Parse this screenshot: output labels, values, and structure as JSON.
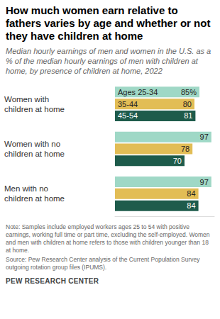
{
  "chart_data": {
    "type": "bar",
    "orientation": "horizontal",
    "title": "How much women earn relative to fathers varies by age and whether or not they have children at home",
    "subtitle": "Median hourly earnings of men and women in the U.S. as a % of the median hourly earnings of men with children at home, by presence of children at home, 2022",
    "categories": [
      "Women with children at home",
      "Women with no children at home",
      "Men with no children at home"
    ],
    "series": [
      {
        "name": "Ages 25-34",
        "color": "#9fd8c6",
        "values": [
          85,
          97,
          97
        ],
        "value_labels": [
          "85%",
          "97",
          "97"
        ]
      },
      {
        "name": "35-44",
        "color": "#e2bd55",
        "values": [
          80,
          78,
          84
        ]
      },
      {
        "name": "45-54",
        "color": "#1e5b4b",
        "values": [
          81,
          70,
          84
        ]
      }
    ],
    "xlim": [
      0,
      100
    ],
    "data_labels": true,
    "tick_labels": false,
    "grid": false,
    "note": "Note: Samples include employed workers ages 25 to 54 with positive earnings, working full time or part time, excluding the self-employed. Women and men with children at home refers to those with children younger than 18 at home.",
    "source": "Source: Pew Research Center analysis of the Current Population Survey outgoing rotation group files (IPUMS).",
    "credit": "PEW RESEARCH CENTER"
  }
}
